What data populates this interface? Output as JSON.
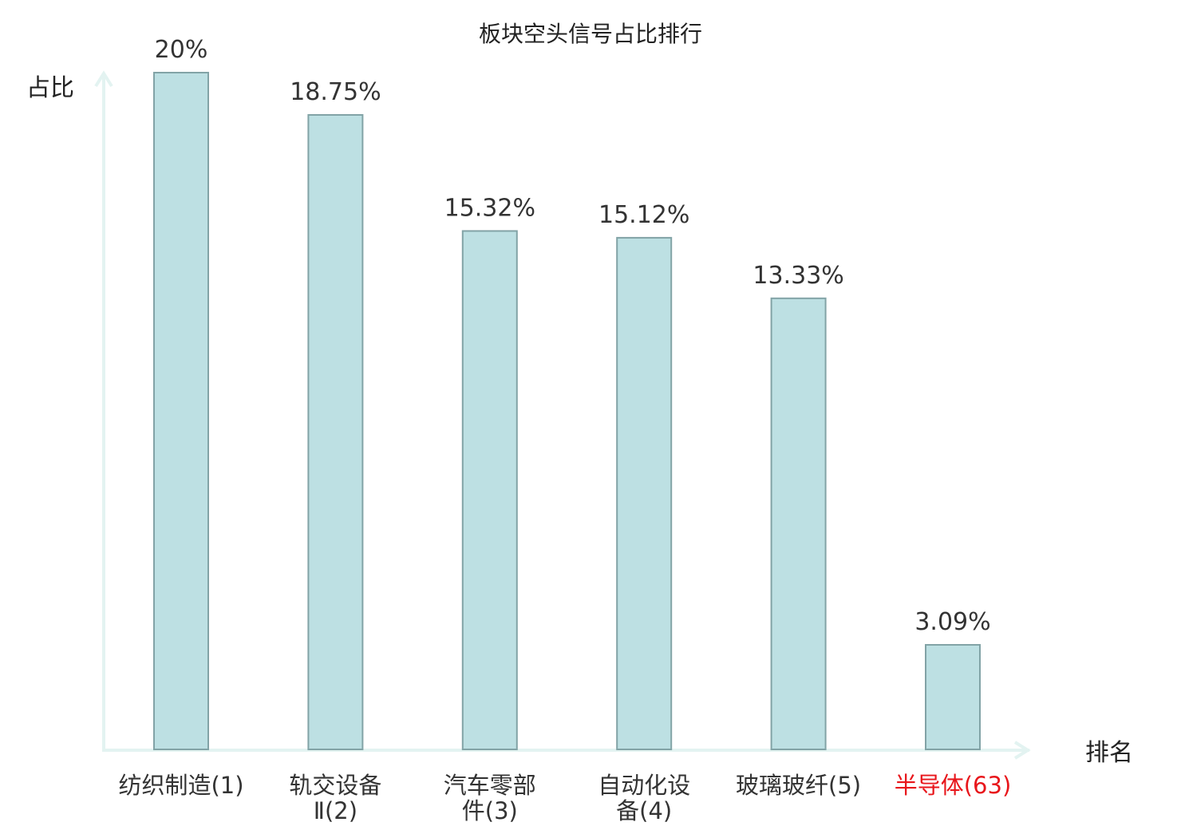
{
  "chart_data": {
    "type": "bar",
    "title": "板块空头信号占比排行",
    "ylabel": "占比",
    "xlabel": "排名",
    "ylim": [
      0,
      20
    ],
    "grid": false,
    "categories": [
      {
        "lines": [
          "纺织制造(1)"
        ],
        "highlight": false
      },
      {
        "lines": [
          "轨交设备",
          "Ⅱ(2)"
        ],
        "highlight": false
      },
      {
        "lines": [
          "汽车零部",
          "件(3)"
        ],
        "highlight": false
      },
      {
        "lines": [
          "自动化设",
          "备(4)"
        ],
        "highlight": false
      },
      {
        "lines": [
          "玻璃玻纤(5)"
        ],
        "highlight": false
      },
      {
        "lines": [
          "半导体(63)"
        ],
        "highlight": true
      }
    ],
    "values": [
      20,
      18.75,
      15.32,
      15.12,
      13.33,
      3.09
    ],
    "value_labels": [
      "20%",
      "18.75%",
      "15.32%",
      "15.12%",
      "13.33%",
      "3.09%"
    ]
  },
  "colors": {
    "bar_fill": "#bde0e3",
    "bar_stroke": "#82a3a6",
    "axis": "#e3f3f1",
    "text": "#333333",
    "highlight": "#e8161b"
  }
}
